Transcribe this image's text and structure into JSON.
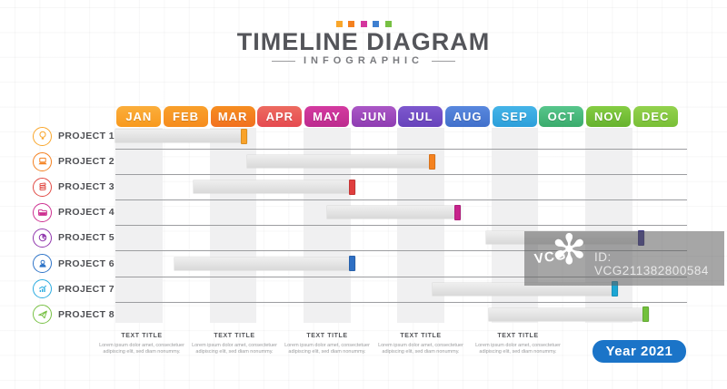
{
  "header": {
    "title": "TIMELINE DIAGRAM",
    "subtitle": "INFOGRAPHIC",
    "dot_colors": [
      "#F9A62B",
      "#F4801F",
      "#D4369E",
      "#3E7FD0",
      "#77C043"
    ]
  },
  "chart_data": {
    "type": "bar",
    "subtype": "gantt-timeline",
    "title": "TIMELINE DIAGRAM",
    "subtitle": "INFOGRAPHIC",
    "x_axis": "months",
    "x_range_months": [
      0,
      12
    ],
    "grid": "alternating-month-stripes",
    "months": [
      {
        "label": "JAN",
        "c1": "#FBAE3C",
        "c2": "#F8991D",
        "shaded": true
      },
      {
        "label": "FEB",
        "c1": "#F9A02B",
        "c2": "#F68C1E",
        "shaded": false
      },
      {
        "label": "MAR",
        "c1": "#F68E21",
        "c2": "#F1701F",
        "shaded": true
      },
      {
        "label": "APR",
        "c1": "#ED6B60",
        "c2": "#E54A50",
        "shaded": false
      },
      {
        "label": "MAY",
        "c1": "#D43AA0",
        "c2": "#BC2B8E",
        "shaded": true
      },
      {
        "label": "JUN",
        "c1": "#AB57C6",
        "c2": "#8E3DB2",
        "shaded": false
      },
      {
        "label": "JUL",
        "c1": "#7E58CE",
        "c2": "#6743BB",
        "shaded": true
      },
      {
        "label": "AUG",
        "c1": "#5988DE",
        "c2": "#4170CB",
        "shaded": false
      },
      {
        "label": "SEP",
        "c1": "#45B4E8",
        "c2": "#2C9FDA",
        "shaded": true
      },
      {
        "label": "OCT",
        "c1": "#57C68C",
        "c2": "#3AAB6C",
        "shaded": false
      },
      {
        "label": "NOV",
        "c1": "#85CD43",
        "c2": "#66B22E",
        "shaded": true
      },
      {
        "label": "DEC",
        "c1": "#93D24E",
        "c2": "#79BF37",
        "shaded": false
      }
    ],
    "projects": [
      {
        "label": "PROJECT 1",
        "icon": "bulb-icon",
        "color": "#F9A62B",
        "cap_color": "#F9A32A",
        "start_month": 0.0,
        "end_month": 2.8
      },
      {
        "label": "PROJECT 2",
        "icon": "laptop-icon",
        "color": "#F4801F",
        "cap_color": "#F5821F",
        "start_month": 2.8,
        "end_month": 6.8
      },
      {
        "label": "PROJECT 3",
        "icon": "documents-icon",
        "color": "#E14A44",
        "cap_color": "#E03E3E",
        "start_month": 1.65,
        "end_month": 5.1
      },
      {
        "label": "PROJECT 4",
        "icon": "folder-icon",
        "color": "#CD2F90",
        "cap_color": "#C7238C",
        "start_month": 4.5,
        "end_month": 7.35
      },
      {
        "label": "PROJECT 5",
        "icon": "pie-chart-icon",
        "color": "#8F35AC",
        "cap_color": "#3D3793",
        "start_month": 7.9,
        "end_month": 11.25
      },
      {
        "label": "PROJECT 6",
        "icon": "person-icon",
        "color": "#2E74C8",
        "cap_color": "#2E6FC3",
        "start_month": 1.25,
        "end_month": 5.1
      },
      {
        "label": "PROJECT 7",
        "icon": "growth-chart-icon",
        "color": "#29ABE0",
        "cap_color": "#1CA6D4",
        "start_month": 6.75,
        "end_month": 10.7
      },
      {
        "label": "PROJECT 8",
        "icon": "paper-plane-icon",
        "color": "#77C043",
        "cap_color": "#72C13C",
        "start_month": 7.95,
        "end_month": 11.35
      }
    ]
  },
  "watermark": {
    "logo_text": "VCG",
    "flower_glyph": "✻",
    "id_text": "ID: VCG211382800584"
  },
  "footer": {
    "text_blocks": [
      {
        "title": "TEXT TITLE",
        "body": "Lorem ipsum dolor amet, consectetuer adipiscing elit, sed diam nonummy."
      },
      {
        "title": "TEXT TITLE",
        "body": "Lorem ipsum dolor amet, consectetuer adipiscing elit, sed diam nonummy."
      },
      {
        "title": "TEXT TITLE",
        "body": "Lorem ipsum dolor amet, consectetuer adipiscing elit, sed diam nonummy."
      },
      {
        "title": "TEXT TITLE",
        "body": "Lorem ipsum dolor amet, consectetuer adipiscing elit, sed diam nonummy."
      },
      {
        "title": "TEXT TITLE",
        "body": "Lorem ipsum dolor amet, consectetuer adipiscing elit, sed diam nonummy."
      }
    ],
    "year_label": "Year 2021",
    "year_color": "#1B74C8"
  }
}
